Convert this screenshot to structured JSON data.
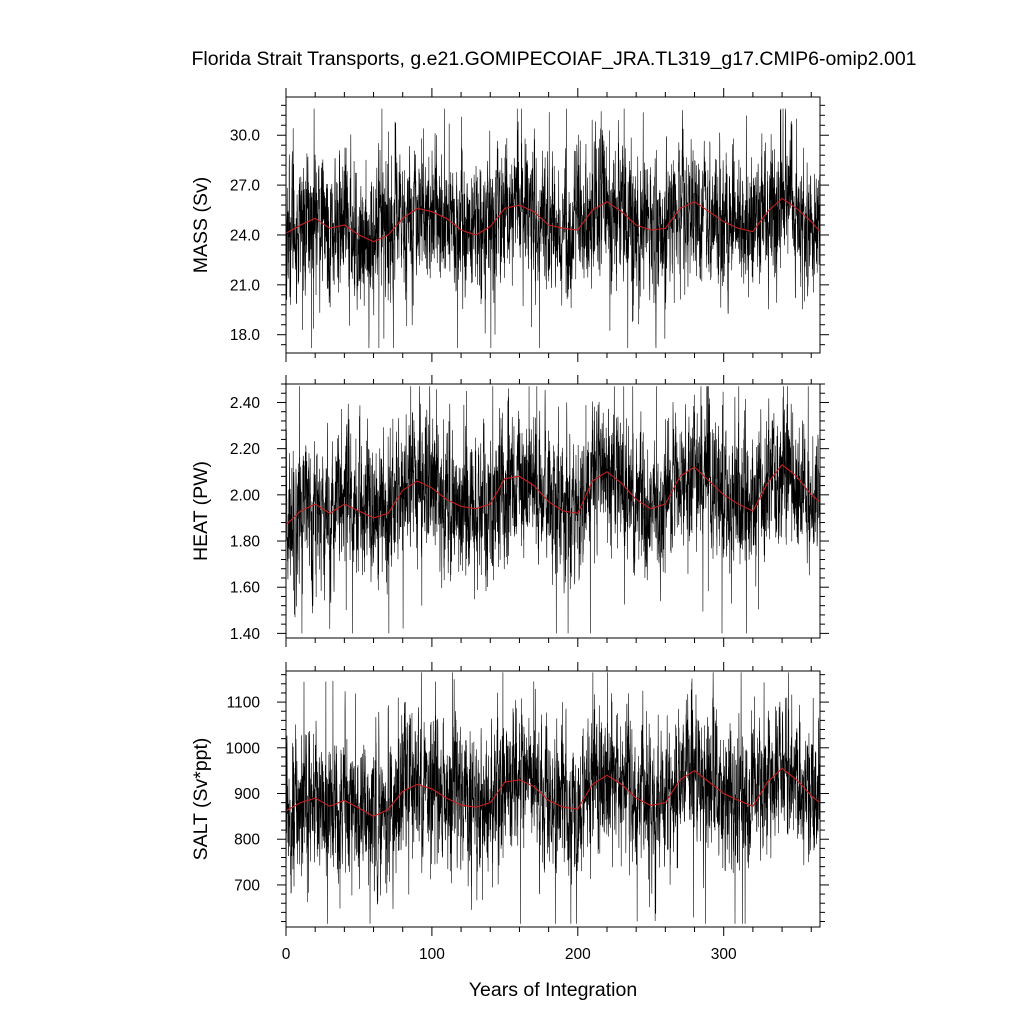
{
  "title": "Florida Strait Transports, g.e21.GOMIPECOIAF_JRA.TL319_g17.CMIP6-omip2.001",
  "colors": {
    "raw": "#000000",
    "running_mean": "#c81e1e",
    "frame": "#000000"
  },
  "chart_data": [
    {
      "type": "line",
      "xlabel": "",
      "ylabel": "MASS (Sv)",
      "xlim": [
        0,
        366
      ],
      "ylim": [
        16.9,
        32.3
      ],
      "x_ticks": [
        0,
        100,
        200,
        300
      ],
      "x_tick_labels": [],
      "y_ticks": [
        18.0,
        21.0,
        24.0,
        27.0,
        30.0
      ],
      "y_tick_labels": [
        "18.0",
        "21.0",
        "24.0",
        "27.0",
        "30.0"
      ],
      "grid": false,
      "series": [
        {
          "role": "monthly",
          "summary": {
            "mean": 24.8,
            "min": 17.2,
            "max": 31.6
          }
        },
        {
          "role": "running-mean",
          "x": [
            0,
            10,
            20,
            30,
            40,
            50,
            60,
            70,
            80,
            90,
            100,
            110,
            120,
            130,
            140,
            150,
            160,
            170,
            180,
            190,
            200,
            210,
            220,
            230,
            240,
            250,
            260,
            270,
            280,
            290,
            300,
            310,
            320,
            330,
            340,
            350,
            360,
            366
          ],
          "values": [
            24.1,
            24.6,
            25.0,
            24.4,
            24.6,
            24.0,
            23.6,
            24.0,
            25.0,
            25.6,
            25.4,
            25.0,
            24.3,
            24.0,
            24.5,
            25.6,
            25.8,
            25.4,
            24.6,
            24.4,
            24.3,
            25.5,
            26.0,
            25.4,
            24.6,
            24.3,
            24.4,
            25.6,
            26.0,
            25.4,
            24.8,
            24.4,
            24.2,
            25.4,
            26.2,
            25.6,
            24.8,
            24.2
          ]
        }
      ]
    },
    {
      "type": "line",
      "xlabel": "",
      "ylabel": "HEAT (PW)",
      "xlim": [
        0,
        366
      ],
      "ylim": [
        1.38,
        2.48
      ],
      "x_ticks": [
        0,
        100,
        200,
        300
      ],
      "x_tick_labels": [],
      "y_ticks": [
        1.4,
        1.6,
        1.8,
        2.0,
        2.2,
        2.4
      ],
      "y_tick_labels": [
        "1.40",
        "1.60",
        "1.80",
        "2.00",
        "2.20",
        "2.40"
      ],
      "grid": false,
      "series": [
        {
          "role": "monthly",
          "summary": {
            "mean": 1.99,
            "min": 1.4,
            "max": 2.47
          }
        },
        {
          "role": "running-mean",
          "x": [
            0,
            10,
            20,
            30,
            40,
            50,
            60,
            70,
            80,
            90,
            100,
            110,
            120,
            130,
            140,
            150,
            160,
            170,
            180,
            190,
            200,
            210,
            220,
            230,
            240,
            250,
            260,
            270,
            280,
            290,
            300,
            310,
            320,
            330,
            340,
            350,
            360,
            366
          ],
          "values": [
            1.87,
            1.93,
            1.96,
            1.92,
            1.96,
            1.93,
            1.9,
            1.92,
            2.02,
            2.06,
            2.03,
            1.98,
            1.95,
            1.94,
            1.96,
            2.07,
            2.08,
            2.04,
            1.97,
            1.93,
            1.92,
            2.06,
            2.1,
            2.05,
            1.98,
            1.94,
            1.96,
            2.08,
            2.12,
            2.06,
            2.0,
            1.96,
            1.93,
            2.05,
            2.13,
            2.08,
            2.0,
            1.97
          ]
        }
      ]
    },
    {
      "type": "line",
      "xlabel": "Years of Integration",
      "ylabel": "SALT (Sv*ppt)",
      "xlim": [
        0,
        366
      ],
      "ylim": [
        608,
        1168
      ],
      "x_ticks": [
        0,
        100,
        200,
        300
      ],
      "x_tick_labels": [
        "0",
        "100",
        "200",
        "300"
      ],
      "y_ticks": [
        700,
        800,
        900,
        1000,
        1100
      ],
      "y_tick_labels": [
        "700",
        "800",
        "900",
        "1000",
        "1100"
      ],
      "grid": false,
      "series": [
        {
          "role": "monthly",
          "summary": {
            "mean": 890,
            "min": 615,
            "max": 1165
          }
        },
        {
          "role": "running-mean",
          "x": [
            0,
            10,
            20,
            30,
            40,
            50,
            60,
            70,
            80,
            90,
            100,
            110,
            120,
            130,
            140,
            150,
            160,
            170,
            180,
            190,
            200,
            210,
            220,
            230,
            240,
            250,
            260,
            270,
            280,
            290,
            300,
            310,
            320,
            330,
            340,
            350,
            360,
            366
          ],
          "values": [
            862,
            880,
            890,
            872,
            885,
            868,
            850,
            865,
            905,
            920,
            910,
            890,
            875,
            870,
            880,
            925,
            930,
            915,
            885,
            870,
            866,
            920,
            940,
            920,
            890,
            874,
            880,
            930,
            950,
            925,
            900,
            885,
            872,
            925,
            955,
            930,
            895,
            880
          ]
        }
      ]
    }
  ]
}
